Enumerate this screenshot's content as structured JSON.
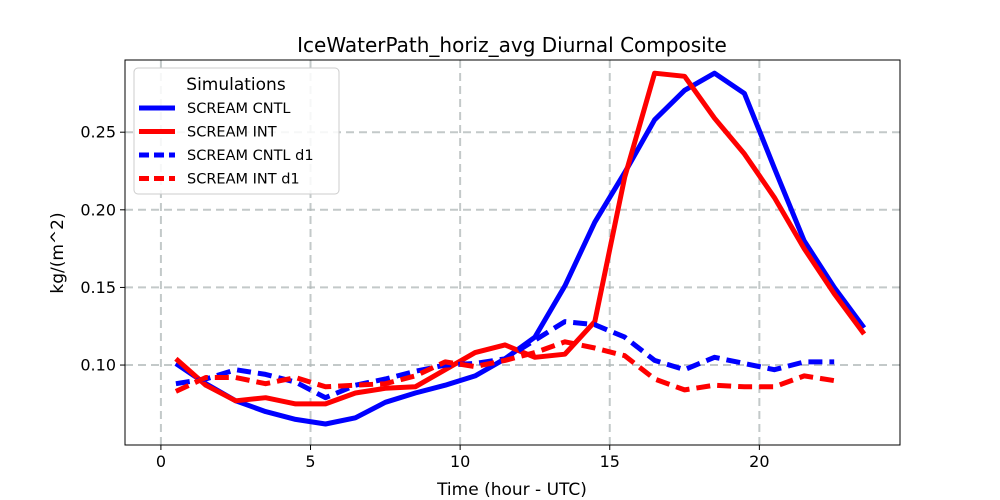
{
  "chart_data": {
    "type": "line",
    "title": "IceWaterPath_horiz_avg Diurnal Composite",
    "xlabel": "Time (hour - UTC)",
    "ylabel": "kg/(m^2)",
    "xlim": [
      -1.2,
      24.7
    ],
    "ylim": [
      0.0485,
      0.2965
    ],
    "xticks": [
      0,
      5,
      10,
      15,
      20
    ],
    "xtick_labels": [
      "0",
      "5",
      "10",
      "15",
      "20"
    ],
    "yticks": [
      0.1,
      0.15,
      0.2,
      0.25
    ],
    "ytick_labels": [
      "0.10",
      "0.15",
      "0.20",
      "0.25"
    ],
    "grid": true,
    "legend": {
      "title": "Simulations",
      "location": "upper-left"
    },
    "series": [
      {
        "name": "SCREAM CNTL",
        "color": "#0000ff",
        "style": "solid",
        "x": [
          0.5,
          1.5,
          2.5,
          3.5,
          4.5,
          5.5,
          6.5,
          7.5,
          8.5,
          9.5,
          10.5,
          11.5,
          12.5,
          13.5,
          14.5,
          15.5,
          16.5,
          17.5,
          18.5,
          19.5,
          20.5,
          21.5,
          22.5,
          23.5
        ],
        "y": [
          0.101,
          0.088,
          0.077,
          0.07,
          0.065,
          0.062,
          0.066,
          0.076,
          0.082,
          0.087,
          0.093,
          0.104,
          0.118,
          0.151,
          0.192,
          0.224,
          0.258,
          0.277,
          0.288,
          0.275,
          0.227,
          0.18,
          0.15,
          0.124
        ]
      },
      {
        "name": "SCREAM INT",
        "color": "#ff0000",
        "style": "solid",
        "x": [
          0.5,
          1.5,
          2.5,
          3.5,
          4.5,
          5.5,
          6.5,
          7.5,
          8.5,
          9.5,
          10.5,
          11.5,
          12.5,
          13.5,
          14.5,
          15.5,
          16.5,
          17.5,
          18.5,
          19.5,
          20.5,
          21.5,
          22.5,
          23.5
        ],
        "y": [
          0.104,
          0.087,
          0.077,
          0.079,
          0.075,
          0.075,
          0.082,
          0.085,
          0.086,
          0.097,
          0.108,
          0.113,
          0.105,
          0.107,
          0.128,
          0.221,
          0.288,
          0.286,
          0.259,
          0.236,
          0.208,
          0.175,
          0.146,
          0.12
        ]
      },
      {
        "name": "SCREAM CNTL d1",
        "color": "#0000ff",
        "style": "dashed",
        "x": [
          0.5,
          1.5,
          2.5,
          3.5,
          4.5,
          5.5,
          6.5,
          7.5,
          8.5,
          9.5,
          10.5,
          11.5,
          12.5,
          13.5,
          14.5,
          15.5,
          16.5,
          17.5,
          18.5,
          19.5,
          20.5,
          21.5,
          22.5
        ],
        "y": [
          0.088,
          0.091,
          0.097,
          0.094,
          0.089,
          0.079,
          0.087,
          0.091,
          0.096,
          0.1,
          0.101,
          0.104,
          0.116,
          0.128,
          0.126,
          0.118,
          0.103,
          0.097,
          0.105,
          0.101,
          0.097,
          0.102,
          0.102
        ]
      },
      {
        "name": "SCREAM INT d1",
        "color": "#ff0000",
        "style": "dashed",
        "x": [
          0.5,
          1.5,
          2.5,
          3.5,
          4.5,
          5.5,
          6.5,
          7.5,
          8.5,
          9.5,
          10.5,
          11.5,
          12.5,
          13.5,
          14.5,
          15.5,
          16.5,
          17.5,
          18.5,
          19.5,
          20.5,
          21.5,
          22.5
        ],
        "y": [
          0.083,
          0.092,
          0.092,
          0.088,
          0.092,
          0.086,
          0.087,
          0.088,
          0.093,
          0.102,
          0.099,
          0.103,
          0.108,
          0.115,
          0.111,
          0.106,
          0.091,
          0.084,
          0.087,
          0.086,
          0.086,
          0.093,
          0.09
        ]
      }
    ]
  }
}
